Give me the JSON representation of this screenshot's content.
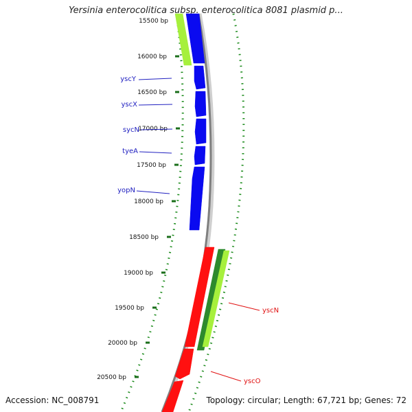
{
  "title": "Yersinia enterocolitica subsp. enterocolitica 8081 plasmid p...",
  "accession_label": "Accession: NC_008791",
  "topology_label": "Topology: circular; Length: 67,721 bp; Genes: 72",
  "colors": {
    "backbone": "#888888",
    "gc_dots": "#1a8a1a",
    "tick": "#1a6e1a",
    "blue_gene": "#0a0af0",
    "blue_label": "#2020c0",
    "red_gene": "#ff1010",
    "red_label": "#e01010",
    "lime_gene": "#a6f03c",
    "dark_green_gene": "#2d8a2d"
  },
  "tick_labels": [
    "15500 bp",
    "16000 bp",
    "16500 bp",
    "17000 bp",
    "17500 bp",
    "18000 bp",
    "18500 bp",
    "19000 bp",
    "19500 bp",
    "20000 bp",
    "20500 bp"
  ],
  "gene_labels": [
    {
      "name": "yscY",
      "strand": "reverse"
    },
    {
      "name": "yscX",
      "strand": "reverse"
    },
    {
      "name": "sycN",
      "strand": "reverse"
    },
    {
      "name": "tyeA",
      "strand": "reverse"
    },
    {
      "name": "yopN",
      "strand": "reverse"
    },
    {
      "name": "yscN",
      "strand": "forward"
    },
    {
      "name": "yscO",
      "strand": "forward"
    }
  ]
}
